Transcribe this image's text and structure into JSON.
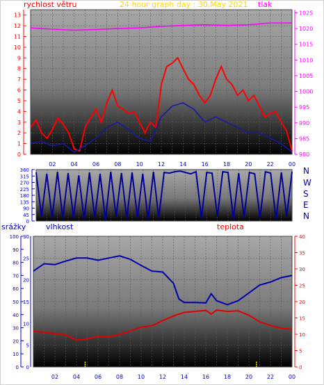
{
  "header": {
    "title": "24 hour graph day : 30.May 2021",
    "left_label": "rychlost větru",
    "right_label": "tlak"
  },
  "direction_panel": {
    "compass": [
      "N",
      "W",
      "S",
      "E",
      "N"
    ]
  },
  "bottom_panel": {
    "label_precip": "srážky",
    "label_humidity": "vlhkost",
    "label_temp": "teplota"
  },
  "colors": {
    "wind": "#ff0000",
    "wind_avg": "#1a1aa0",
    "pressure": "#ff00ff",
    "direction": "#000099",
    "humidity": "#0000aa",
    "temperature": "#e00000",
    "precip": "#ffff00",
    "title": "#ffd700",
    "axis_blue": "#0000cc",
    "axis_red": "#ff0000"
  },
  "chart_data": [
    {
      "type": "line",
      "name": "wind-pressure",
      "x_ticks": [
        "02",
        "04",
        "06",
        "08",
        "10",
        "12",
        "14",
        "16",
        "18",
        "20",
        "22",
        "00"
      ],
      "y_left_ticks": [
        "0",
        "1",
        "2",
        "3",
        "4",
        "5",
        "6",
        "7",
        "8",
        "9",
        "10",
        "11",
        "12",
        "13"
      ],
      "y_right_ticks": [
        "980",
        "985",
        "990",
        "995",
        "1000",
        "1005",
        "1010",
        "1015",
        "1020",
        "1025"
      ],
      "ylim_left": [
        0,
        13.5
      ],
      "ylim_right": [
        980,
        1026
      ],
      "series": [
        {
          "key": "pressure",
          "axis": "right",
          "hours": [
            0,
            2,
            4,
            6,
            8,
            10,
            12,
            14,
            16,
            18,
            20,
            22,
            24
          ],
          "values": [
            1020.2,
            1019.8,
            1019.5,
            1019.7,
            1020.0,
            1020.2,
            1020.7,
            1021.0,
            1021.2,
            1021.0,
            1021.2,
            1021.8,
            1021.8
          ]
        },
        {
          "key": "wind_gust",
          "axis": "left",
          "hours": [
            0,
            0.5,
            1,
            1.5,
            2,
            2.5,
            3,
            3.5,
            4,
            4.5,
            5,
            5.5,
            6,
            6.5,
            7,
            7.5,
            8,
            8.5,
            9,
            9.5,
            10,
            10.5,
            11,
            11.5,
            12,
            12.5,
            13,
            13.5,
            14,
            14.5,
            15,
            15.5,
            16,
            16.5,
            17,
            17.5,
            18,
            18.5,
            19,
            19.5,
            20,
            20.5,
            21,
            21.5,
            22,
            22.5,
            23,
            23.5,
            24
          ],
          "values": [
            2.5,
            3.2,
            2.0,
            1.5,
            2.3,
            3.4,
            2.8,
            2.0,
            0.5,
            0.3,
            2.5,
            3.4,
            4.2,
            3.0,
            4.8,
            6.0,
            4.5,
            4.2,
            3.8,
            4.0,
            3.0,
            2.0,
            3.0,
            2.5,
            6.5,
            8.2,
            8.5,
            9.0,
            8.0,
            7.0,
            6.5,
            5.5,
            4.8,
            5.5,
            7.0,
            8.2,
            7.0,
            6.5,
            5.5,
            6.0,
            5.0,
            5.5,
            4.5,
            3.5,
            3.8,
            4.0,
            3.0,
            2.2,
            0.3
          ]
        },
        {
          "key": "wind_avg",
          "axis": "left",
          "hours": [
            0,
            1,
            2,
            3,
            4,
            5,
            6,
            7,
            8,
            9,
            10,
            11,
            12,
            13,
            14,
            15,
            16,
            17,
            18,
            19,
            20,
            21,
            22,
            23,
            24
          ],
          "values": [
            1.0,
            1.2,
            0.8,
            1.0,
            0.2,
            0.8,
            1.5,
            2.5,
            3.0,
            2.3,
            1.5,
            1.2,
            3.5,
            4.5,
            4.8,
            4.2,
            3.0,
            3.5,
            3.0,
            2.5,
            2.0,
            2.0,
            1.5,
            1.0,
            0.2
          ]
        }
      ]
    },
    {
      "type": "line",
      "name": "wind-direction",
      "y_ticks": [
        "0",
        "45",
        "90",
        "135",
        "180",
        "225",
        "270",
        "315",
        "360"
      ],
      "ylim": [
        0,
        360
      ],
      "hours": [
        0,
        0.5,
        1,
        1.5,
        2,
        2.5,
        3,
        3.5,
        4,
        4.5,
        5,
        5.5,
        6,
        6.5,
        7,
        7.5,
        8,
        8.5,
        9,
        9.5,
        10,
        10.5,
        11,
        11.5,
        12,
        12.5,
        13,
        13.5,
        14,
        14.5,
        15,
        15.5,
        16,
        16.5,
        17,
        17.5,
        18,
        18.5,
        19,
        19.5,
        20,
        20.5,
        21,
        21.5,
        22,
        22.5,
        23,
        23.5,
        24
      ],
      "values": [
        340,
        30,
        330,
        20,
        345,
        15,
        335,
        25,
        320,
        10,
        340,
        20,
        330,
        5,
        345,
        30,
        335,
        15,
        340,
        25,
        330,
        10,
        345,
        20,
        340,
        335,
        345,
        350,
        340,
        330,
        345,
        20,
        340,
        335,
        30,
        345,
        340,
        15,
        335,
        25,
        340,
        330,
        20,
        345,
        335,
        10,
        340,
        30,
        345
      ]
    },
    {
      "type": "line",
      "name": "humidity-temperature",
      "x_ticks": [
        "02",
        "04",
        "06",
        "08",
        "10",
        "12",
        "14",
        "16",
        "18",
        "20",
        "22",
        "00"
      ],
      "y_precip_ticks": [
        "0",
        "10",
        "20",
        "30",
        "40",
        "50",
        "60",
        "70",
        "80",
        "90",
        "100"
      ],
      "y_humidity_ticks": [
        "0",
        "5",
        "10",
        "15",
        "20",
        "25",
        "30"
      ],
      "y_temp_ticks": [
        "0",
        "5",
        "10",
        "15",
        "20",
        "25",
        "30",
        "35",
        "40"
      ],
      "ylim_precip": [
        0,
        100
      ],
      "ylim_humidity": [
        0,
        30
      ],
      "ylim_temp": [
        0,
        40
      ],
      "series": [
        {
          "key": "humidity",
          "axis": "humidity",
          "hours": [
            0,
            1,
            2,
            3,
            4,
            5,
            6,
            7,
            8,
            9,
            10,
            11,
            12,
            13,
            13.5,
            14,
            15,
            16,
            16.5,
            17,
            18,
            19,
            20,
            21,
            22,
            23,
            24
          ],
          "values": [
            22.0,
            23.7,
            23.5,
            24.3,
            25.0,
            25.0,
            24.5,
            25.0,
            25.5,
            24.7,
            23.3,
            22.0,
            21.8,
            19.2,
            15.6,
            14.8,
            14.8,
            14.7,
            16.8,
            15.2,
            14.3,
            15.2,
            17.0,
            18.8,
            19.5,
            20.5,
            21.0
          ]
        },
        {
          "key": "temperature",
          "axis": "temp",
          "hours": [
            0,
            1,
            2,
            3,
            4,
            5,
            6,
            7,
            8,
            9,
            10,
            11,
            12,
            13,
            14,
            15,
            16,
            16.5,
            17,
            18,
            19,
            20,
            21,
            22,
            23,
            24
          ],
          "values": [
            11.0,
            10.6,
            10.2,
            9.8,
            8.2,
            8.6,
            9.4,
            9.2,
            10.0,
            11.0,
            12.2,
            12.6,
            14.2,
            15.6,
            16.7,
            17.0,
            17.3,
            16.2,
            17.4,
            17.0,
            17.2,
            15.8,
            13.8,
            12.7,
            11.8,
            11.5
          ]
        },
        {
          "key": "precip",
          "axis": "precip",
          "hours": [
            4.8,
            20.7
          ],
          "values": [
            4,
            4
          ]
        }
      ]
    }
  ]
}
